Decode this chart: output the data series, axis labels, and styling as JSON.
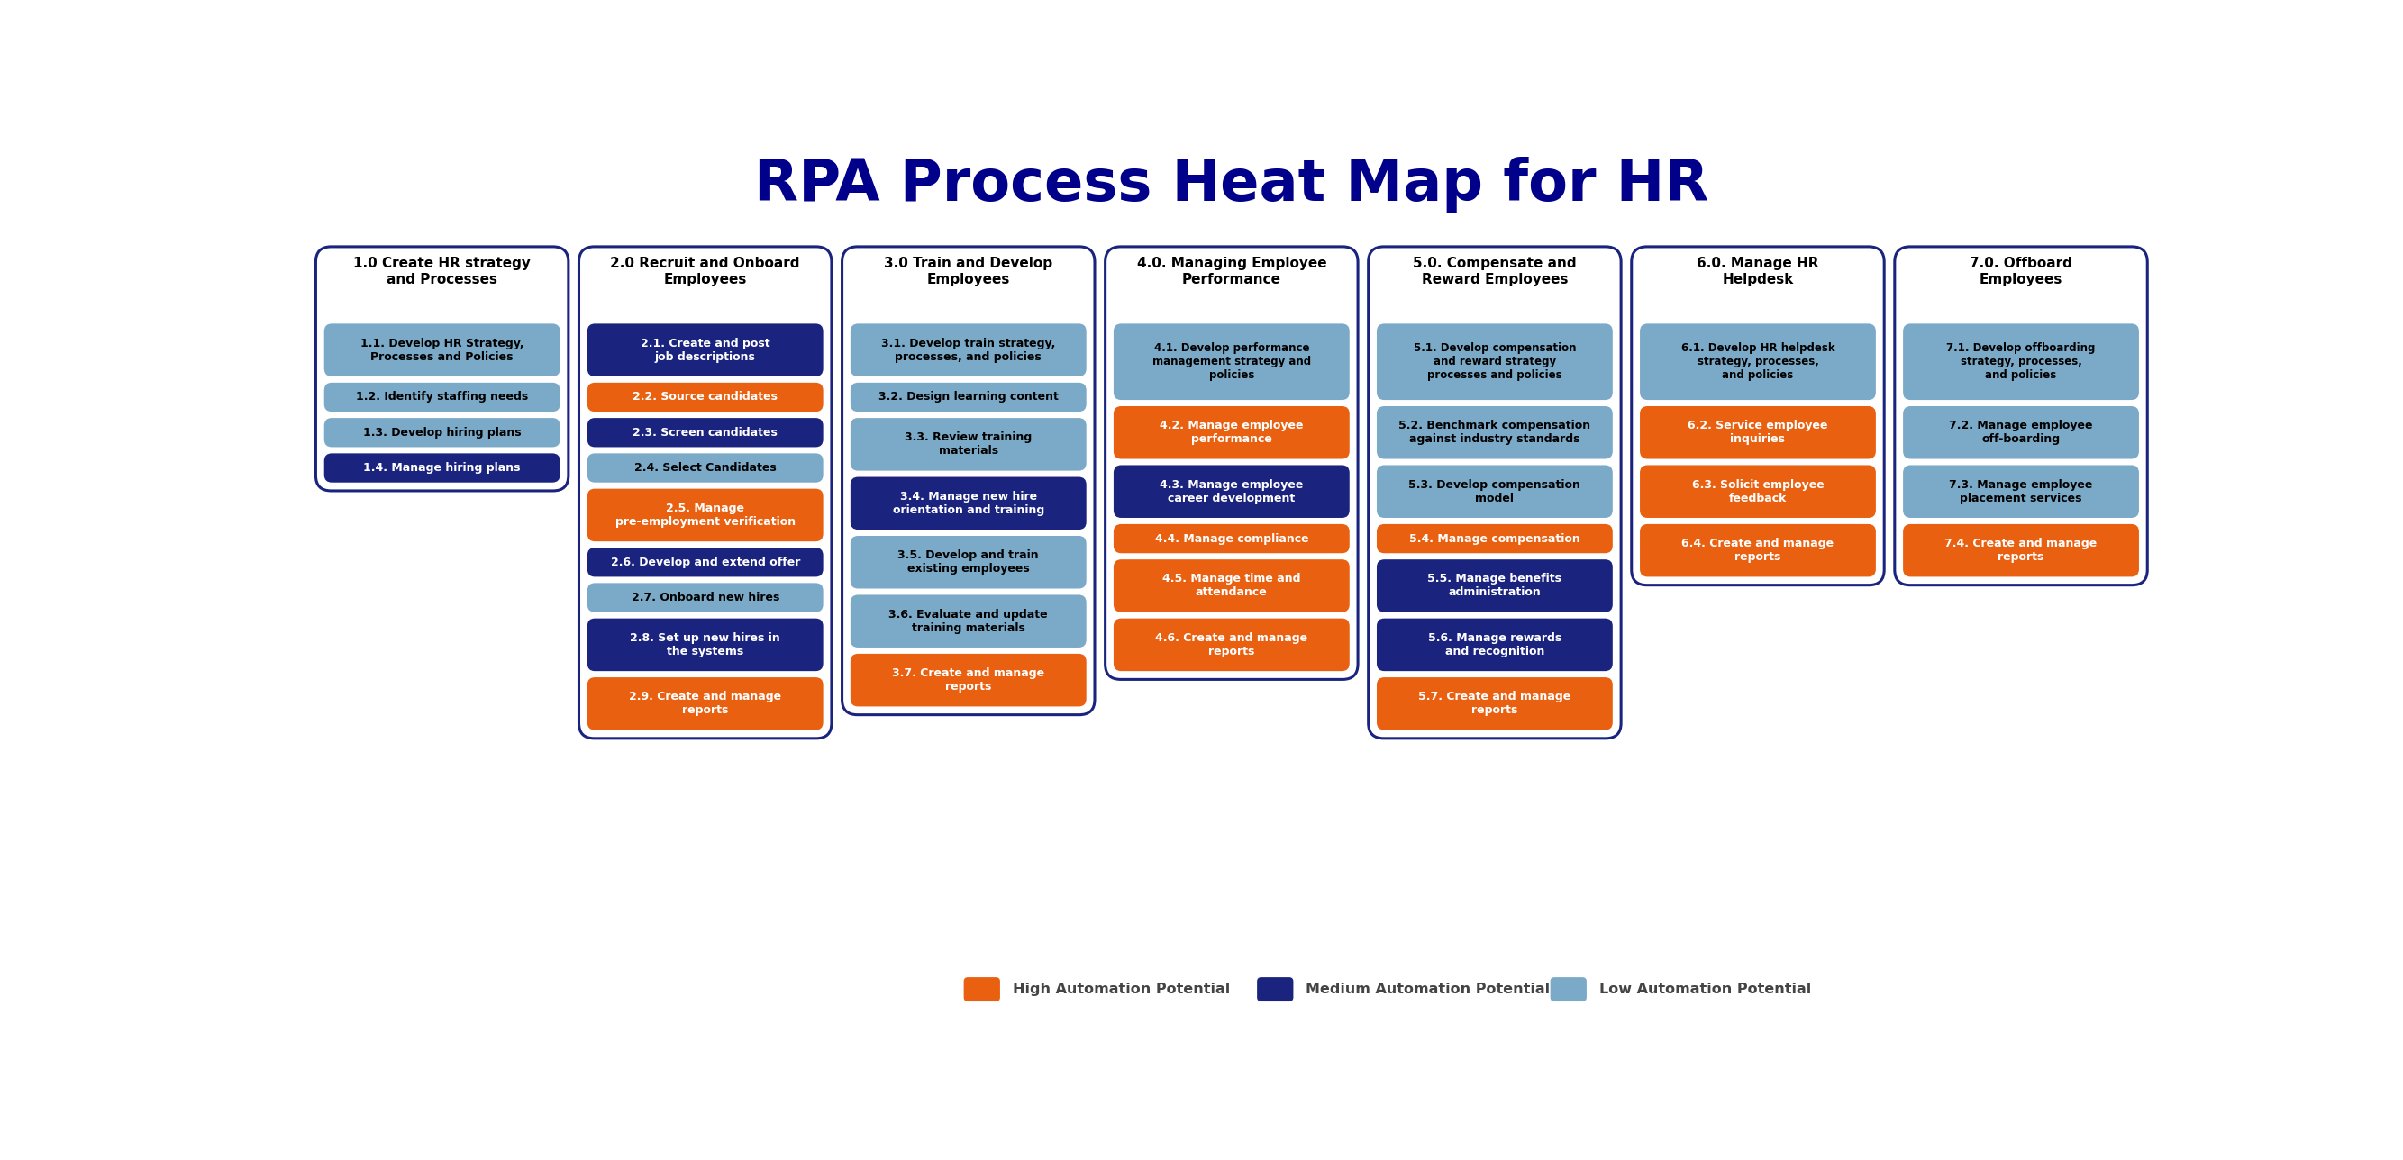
{
  "title": "RPA Process Heat Map for HR",
  "title_color": "#00008B",
  "title_fontsize": 46,
  "background_color": "#FFFFFF",
  "colors": {
    "high": "#E86010",
    "medium": "#1A237E",
    "low": "#7BAAC8",
    "header_text": "#000000",
    "border": "#1A237E"
  },
  "columns": [
    {
      "header": "1.0 Create HR strategy\nand Processes",
      "items": [
        {
          "text": "1.1. Develop HR Strategy,\nProcesses and Policies",
          "color": "low"
        },
        {
          "text": "1.2. Identify staffing needs",
          "color": "low"
        },
        {
          "text": "1.3. Develop hiring plans",
          "color": "low"
        },
        {
          "text": "1.4. Manage hiring plans",
          "color": "medium"
        }
      ]
    },
    {
      "header": "2.0 Recruit and Onboard\nEmployees",
      "items": [
        {
          "text": "2.1. Create and post\njob descriptions",
          "color": "medium"
        },
        {
          "text": "2.2. Source candidates",
          "color": "high"
        },
        {
          "text": "2.3. Screen candidates",
          "color": "medium"
        },
        {
          "text": "2.4. Select Candidates",
          "color": "low"
        },
        {
          "text": "2.5. Manage\npre-employment verification",
          "color": "high"
        },
        {
          "text": "2.6. Develop and extend offer",
          "color": "medium"
        },
        {
          "text": "2.7. Onboard new hires",
          "color": "low"
        },
        {
          "text": "2.8. Set up new hires in\nthe systems",
          "color": "medium"
        },
        {
          "text": "2.9. Create and manage\nreports",
          "color": "high"
        }
      ]
    },
    {
      "header": "3.0 Train and Develop\nEmployees",
      "items": [
        {
          "text": "3.1. Develop train strategy,\nprocesses, and policies",
          "color": "low"
        },
        {
          "text": "3.2. Design learning content",
          "color": "low"
        },
        {
          "text": "3.3. Review training\nmaterials",
          "color": "low"
        },
        {
          "text": "3.4. Manage new hire\norientation and training",
          "color": "medium"
        },
        {
          "text": "3.5. Develop and train\nexisting employees",
          "color": "low"
        },
        {
          "text": "3.6. Evaluate and update\ntraining materials",
          "color": "low"
        },
        {
          "text": "3.7. Create and manage\nreports",
          "color": "high"
        }
      ]
    },
    {
      "header": "4.0. Managing Employee\nPerformance",
      "items": [
        {
          "text": "4.1. Develop performance\nmanagement strategy and\npolicies",
          "color": "low"
        },
        {
          "text": "4.2. Manage employee\nperformance",
          "color": "high"
        },
        {
          "text": "4.3. Manage employee\ncareer development",
          "color": "medium"
        },
        {
          "text": "4.4. Manage compliance",
          "color": "high"
        },
        {
          "text": "4.5. Manage time and\nattendance",
          "color": "high"
        },
        {
          "text": "4.6. Create and manage\nreports",
          "color": "high"
        }
      ]
    },
    {
      "header": "5.0. Compensate and\nReward Employees",
      "items": [
        {
          "text": "5.1. Develop compensation\nand reward strategy\nprocesses and policies",
          "color": "low"
        },
        {
          "text": "5.2. Benchmark compensation\nagainst industry standards",
          "color": "low"
        },
        {
          "text": "5.3. Develop compensation\nmodel",
          "color": "low"
        },
        {
          "text": "5.4. Manage compensation",
          "color": "high"
        },
        {
          "text": "5.5. Manage benefits\nadministration",
          "color": "medium"
        },
        {
          "text": "5.6. Manage rewards\nand recognition",
          "color": "medium"
        },
        {
          "text": "5.7. Create and manage\nreports",
          "color": "high"
        }
      ]
    },
    {
      "header": "6.0. Manage HR\nHelpdesk",
      "items": [
        {
          "text": "6.1. Develop HR helpdesk\nstrategy, processes,\nand policies",
          "color": "low"
        },
        {
          "text": "6.2. Service employee\ninquiries",
          "color": "high"
        },
        {
          "text": "6.3. Solicit employee\nfeedback",
          "color": "high"
        },
        {
          "text": "6.4. Create and manage\nreports",
          "color": "high"
        }
      ]
    },
    {
      "header": "7.0. Offboard\nEmployees",
      "items": [
        {
          "text": "7.1. Develop offboarding\nstrategy, processes,\nand policies",
          "color": "low"
        },
        {
          "text": "7.2. Manage employee\noff-boarding",
          "color": "low"
        },
        {
          "text": "7.3. Manage employee\nplacement services",
          "color": "low"
        },
        {
          "text": "7.4. Create and manage\nreports",
          "color": "high"
        }
      ]
    }
  ],
  "legend": [
    {
      "label": "High Automation Potential",
      "color": "high"
    },
    {
      "label": "Medium Automation Potential",
      "color": "medium"
    },
    {
      "label": "Low Automation Potential",
      "color": "low"
    }
  ]
}
